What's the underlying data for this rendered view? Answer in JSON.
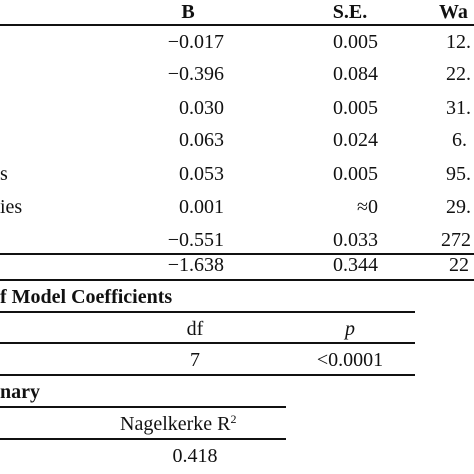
{
  "coefficients_table": {
    "headers": {
      "b": "B",
      "se": "S.E.",
      "wald": "Wa"
    },
    "rows": [
      {
        "label": "",
        "b": "−0.017",
        "se": "0.005",
        "wald": "12."
      },
      {
        "label": "",
        "b": "−0.396",
        "se": "0.084",
        "wald": "22."
      },
      {
        "label": "",
        "b": "0.030",
        "se": "0.005",
        "wald": "31."
      },
      {
        "label": "",
        "b": "0.063",
        "se": "0.024",
        "wald": "6."
      },
      {
        "label": "s",
        "b": "0.053",
        "se": "0.005",
        "wald": "95."
      },
      {
        "label": "ies",
        "b": "0.001",
        "se": "≈0",
        "wald": "29."
      },
      {
        "label": "",
        "b": "−0.551",
        "se": "0.033",
        "wald": "272"
      },
      {
        "label": "",
        "b": "−1.638",
        "se": "0.344",
        "wald": "22"
      }
    ]
  },
  "omnibus_table": {
    "title": "f Model Coefficients",
    "headers": {
      "df": "df",
      "p": "p"
    },
    "row": {
      "df": "7",
      "p": "<0.0001"
    }
  },
  "summary_table": {
    "title": "nary",
    "header": {
      "text": "Nagelkerke R",
      "superscript": "2"
    },
    "value": "0.418"
  }
}
